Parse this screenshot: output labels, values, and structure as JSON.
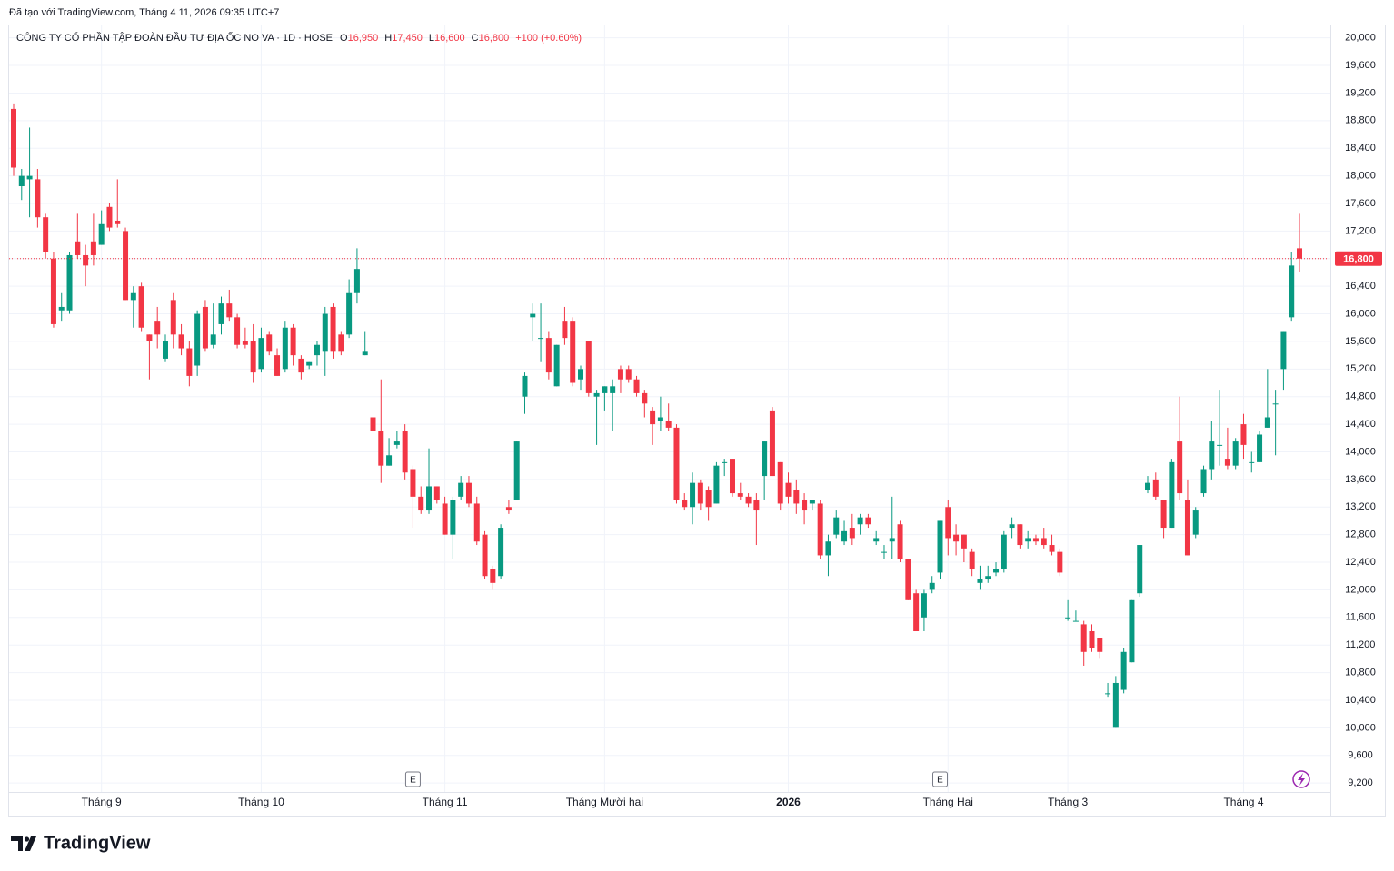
{
  "chart_data": {
    "type": "candlestick",
    "attribution": "Đã tạo với TradingView.com, Tháng 4 11, 2026 09:35 UTC+7",
    "title": "CÔNG TY CỔ PHẦN TẬP ĐOÀN ĐẦU TƯ ĐỊA ỐC NO VA · 1D · HOSE",
    "legend_ohlc": [
      {
        "key": "O",
        "value": "16,950"
      },
      {
        "key": "H",
        "value": "17,450"
      },
      {
        "key": "L",
        "value": "16,600"
      },
      {
        "key": "C",
        "value": "16,800"
      }
    ],
    "change": "+100 (+0.60%)",
    "up_color": "#089981",
    "down_color": "#f23645",
    "grid": true,
    "categories": [
      null,
      null,
      null,
      null,
      null,
      null,
      null,
      null,
      null,
      null,
      null,
      "Tháng 9",
      null,
      null,
      null,
      null,
      null,
      null,
      null,
      null,
      null,
      null,
      null,
      null,
      null,
      null,
      null,
      null,
      null,
      null,
      null,
      "Tháng 10",
      null,
      null,
      null,
      null,
      null,
      null,
      null,
      null,
      null,
      null,
      null,
      null,
      null,
      null,
      null,
      null,
      null,
      null,
      null,
      null,
      null,
      null,
      "Tháng 11",
      null,
      null,
      null,
      null,
      null,
      null,
      null,
      null,
      null,
      null,
      null,
      null,
      null,
      null,
      null,
      null,
      null,
      null,
      null,
      "Tháng Mười hai",
      null,
      null,
      null,
      null,
      null,
      null,
      null,
      null,
      null,
      null,
      null,
      null,
      null,
      null,
      null,
      null,
      null,
      null,
      null,
      null,
      null,
      null,
      "2026",
      null,
      null,
      null,
      null,
      null,
      null,
      null,
      null,
      null,
      null,
      null,
      null,
      null,
      null,
      null,
      null,
      null,
      null,
      null,
      "Tháng Hai",
      null,
      null,
      null,
      null,
      null,
      null,
      null,
      null,
      null,
      null,
      null,
      null,
      null,
      null,
      "Tháng 3",
      null,
      null,
      null,
      null,
      null,
      null,
      null,
      null,
      null,
      null,
      null,
      null,
      null,
      null,
      null,
      null,
      null,
      null,
      null,
      null,
      null,
      "Tháng 4",
      null,
      null,
      null,
      null,
      null,
      null,
      null
    ],
    "open": [
      18970,
      17850,
      17950,
      17950,
      17400,
      16800,
      16050,
      16050,
      17050,
      16850,
      17050,
      17000,
      17550,
      17350,
      17200,
      16200,
      16400,
      15700,
      15900,
      15350,
      16200,
      15700,
      15500,
      15250,
      16100,
      15550,
      15850,
      16150,
      15950,
      15600,
      15600,
      15200,
      15700,
      15400,
      15200,
      15800,
      15350,
      15250,
      15400,
      15450,
      16100,
      15700,
      15700,
      16300,
      15400,
      14500,
      14300,
      13800,
      14100,
      14300,
      13750,
      13350,
      13150,
      13500,
      13250,
      12800,
      13350,
      13550,
      13250,
      12800,
      12300,
      12200,
      13200,
      13300,
      14800,
      15950,
      15650,
      15650,
      14950,
      15900,
      15900,
      15050,
      15600,
      14800,
      14850,
      14850,
      15200,
      15200,
      15050,
      14850,
      14600,
      14450,
      14450,
      14350,
      13300,
      13200,
      13550,
      13450,
      13250,
      13850,
      13900,
      13400,
      13350,
      13300,
      13650,
      14600,
      13850,
      13550,
      13450,
      13300,
      13250,
      13250,
      12500,
      12800,
      12700,
      12900,
      12950,
      13050,
      12700,
      12550,
      12700,
      12950,
      12450,
      11950,
      11600,
      12000,
      12250,
      13200,
      12800,
      12800,
      12550,
      12100,
      12150,
      12250,
      12300,
      12900,
      12950,
      12700,
      12750,
      12750,
      12650,
      12550,
      11600,
      11550,
      11500,
      11400,
      11300,
      10500,
      10000,
      10550,
      10950,
      11950,
      13450,
      13600,
      13300,
      12900,
      14150,
      13300,
      12800,
      13400,
      13750,
      14100,
      13900,
      13800,
      14400,
      13850,
      13850,
      14350,
      14700,
      15200,
      15950,
      16950
    ],
    "high": [
      19050,
      18100,
      18700,
      18100,
      17450,
      16900,
      16300,
      16900,
      17450,
      17000,
      17450,
      17500,
      17600,
      17950,
      17250,
      16400,
      16450,
      15700,
      16100,
      15700,
      16300,
      15850,
      15600,
      16050,
      16200,
      16150,
      16250,
      16350,
      16000,
      15800,
      15850,
      15800,
      15750,
      15500,
      15900,
      15850,
      15400,
      15300,
      15600,
      16100,
      16150,
      15750,
      16500,
      16950,
      15750,
      14800,
      15050,
      14200,
      14300,
      14400,
      13800,
      13500,
      14050,
      13500,
      13350,
      13350,
      13650,
      13650,
      13350,
      12850,
      12350,
      12950,
      13300,
      14150,
      15150,
      16150,
      16150,
      15750,
      15550,
      16100,
      15950,
      15250,
      15600,
      14900,
      14950,
      15050,
      15250,
      15250,
      15100,
      14900,
      14650,
      14800,
      14700,
      14400,
      13400,
      13700,
      13600,
      13500,
      13850,
      13900,
      13900,
      13550,
      13400,
      13400,
      14150,
      14650,
      13850,
      13700,
      13600,
      13400,
      13300,
      13300,
      12800,
      13150,
      13000,
      13100,
      13100,
      13100,
      12850,
      12650,
      13350,
      13000,
      12450,
      12000,
      12000,
      12200,
      13000,
      13300,
      12950,
      12800,
      12600,
      12350,
      12350,
      12400,
      12850,
      13050,
      12950,
      12850,
      12800,
      12900,
      12800,
      12600,
      11850,
      11700,
      11550,
      11500,
      11300,
      10650,
      10750,
      11150,
      11850,
      12650,
      13650,
      13700,
      13300,
      13900,
      14800,
      13600,
      13200,
      13800,
      14450,
      14900,
      14350,
      14200,
      14550,
      14000,
      14300,
      15200,
      14900,
      15750,
      16900,
      17450
    ],
    "low": [
      18000,
      17650,
      17400,
      17250,
      16800,
      15800,
      15900,
      16000,
      16800,
      16400,
      16700,
      17000,
      17200,
      17250,
      16200,
      15800,
      15750,
      15050,
      15500,
      15300,
      15500,
      15400,
      14950,
      15100,
      15450,
      15500,
      15700,
      15900,
      15500,
      15500,
      15000,
      15150,
      15400,
      15100,
      15150,
      15250,
      15050,
      15200,
      15250,
      15100,
      15350,
      15400,
      15650,
      16150,
      15400,
      14250,
      13550,
      13800,
      14050,
      13600,
      12900,
      13100,
      13100,
      13250,
      12800,
      12450,
      13300,
      13200,
      12650,
      12150,
      12000,
      12150,
      13100,
      13300,
      14550,
      15600,
      15300,
      15050,
      14950,
      15550,
      14950,
      14900,
      14800,
      14100,
      14600,
      14300,
      14850,
      15000,
      14800,
      14500,
      14100,
      14300,
      14300,
      13250,
      13150,
      12950,
      13150,
      13000,
      13250,
      13650,
      13350,
      13300,
      13200,
      12650,
      13300,
      13650,
      13150,
      13250,
      13100,
      12950,
      13150,
      12450,
      12200,
      12750,
      12650,
      12650,
      12800,
      12900,
      12650,
      12450,
      12450,
      12400,
      11850,
      11400,
      11400,
      11950,
      12150,
      12500,
      12500,
      12400,
      12200,
      12000,
      12100,
      12200,
      12250,
      12750,
      12600,
      12600,
      12650,
      12600,
      12500,
      12200,
      11550,
      11550,
      10900,
      11100,
      11000,
      10450,
      10000,
      10500,
      10950,
      11900,
      13400,
      13300,
      12750,
      12900,
      13300,
      12500,
      12750,
      13350,
      13600,
      13800,
      13750,
      13750,
      13900,
      13700,
      13850,
      14350,
      13950,
      14900,
      15900,
      16600
    ],
    "close": [
      18120,
      18000,
      18000,
      17400,
      16900,
      15850,
      16100,
      16850,
      16850,
      16700,
      16850,
      17300,
      17250,
      17300,
      16200,
      16300,
      15800,
      15600,
      15700,
      15600,
      15700,
      15500,
      15100,
      16000,
      15500,
      15700,
      16150,
      15950,
      15550,
      15550,
      15150,
      15650,
      15450,
      15100,
      15800,
      15400,
      15150,
      15300,
      15550,
      16000,
      15450,
      15450,
      16300,
      16650,
      15450,
      14300,
      13800,
      13950,
      14150,
      13700,
      13350,
      13150,
      13500,
      13300,
      12800,
      13300,
      13550,
      13250,
      12700,
      12200,
      12100,
      12900,
      13150,
      14150,
      15100,
      16000,
      15650,
      15150,
      15550,
      15650,
      15000,
      15200,
      14850,
      14850,
      14950,
      14950,
      15050,
      15050,
      14850,
      14700,
      14400,
      14500,
      14350,
      13300,
      13200,
      13550,
      13250,
      13200,
      13800,
      13850,
      13400,
      13350,
      13250,
      13150,
      14150,
      13650,
      13250,
      13350,
      13250,
      13150,
      13300,
      12500,
      12700,
      13050,
      12850,
      12750,
      13050,
      12950,
      12750,
      12550,
      12750,
      12450,
      11850,
      11400,
      11950,
      12100,
      13000,
      12750,
      12700,
      12600,
      12300,
      12150,
      12200,
      12300,
      12800,
      12950,
      12650,
      12750,
      12700,
      12650,
      12550,
      12250,
      11600,
      11550,
      11100,
      11150,
      11100,
      10500,
      10650,
      11100,
      11850,
      12650,
      13550,
      13350,
      12900,
      13850,
      13400,
      12500,
      13150,
      13750,
      14150,
      14100,
      13800,
      14150,
      14100,
      13850,
      14250,
      14500,
      14700,
      15750,
      16700,
      16800
    ],
    "ylim": [
      9070,
      20180
    ],
    "yticks": [
      {
        "value": 9200,
        "label": "9,200"
      },
      {
        "value": 9600,
        "label": "9,600"
      },
      {
        "value": 10000,
        "label": "10,000"
      },
      {
        "value": 10400,
        "label": "10,400"
      },
      {
        "value": 10800,
        "label": "10,800"
      },
      {
        "value": 11200,
        "label": "11,200"
      },
      {
        "value": 11600,
        "label": "11,600"
      },
      {
        "value": 12000,
        "label": "12,000"
      },
      {
        "value": 12400,
        "label": "12,400"
      },
      {
        "value": 12800,
        "label": "12,800"
      },
      {
        "value": 13200,
        "label": "13,200"
      },
      {
        "value": 13600,
        "label": "13,600"
      },
      {
        "value": 14000,
        "label": "14,000"
      },
      {
        "value": 14400,
        "label": "14,400"
      },
      {
        "value": 14800,
        "label": "14,800"
      },
      {
        "value": 15200,
        "label": "15,200"
      },
      {
        "value": 15600,
        "label": "15,600"
      },
      {
        "value": 16000,
        "label": "16,000"
      },
      {
        "value": 16400,
        "label": "16,400"
      },
      {
        "value": 16800,
        "label": "16,800"
      },
      {
        "value": 17200,
        "label": "17,200"
      },
      {
        "value": 17600,
        "label": "17,600"
      },
      {
        "value": 18000,
        "label": "18,000"
      },
      {
        "value": 18400,
        "label": "18,400"
      },
      {
        "value": 18800,
        "label": "18,800"
      },
      {
        "value": 19200,
        "label": "19,200"
      },
      {
        "value": 19600,
        "label": "19,600"
      },
      {
        "value": 20000,
        "label": "20,000"
      }
    ],
    "last_price": {
      "value": 16800,
      "label": "16,800"
    },
    "earnings": {
      "label": "E",
      "at": [
        50,
        116
      ]
    }
  },
  "logo": "TradingView"
}
